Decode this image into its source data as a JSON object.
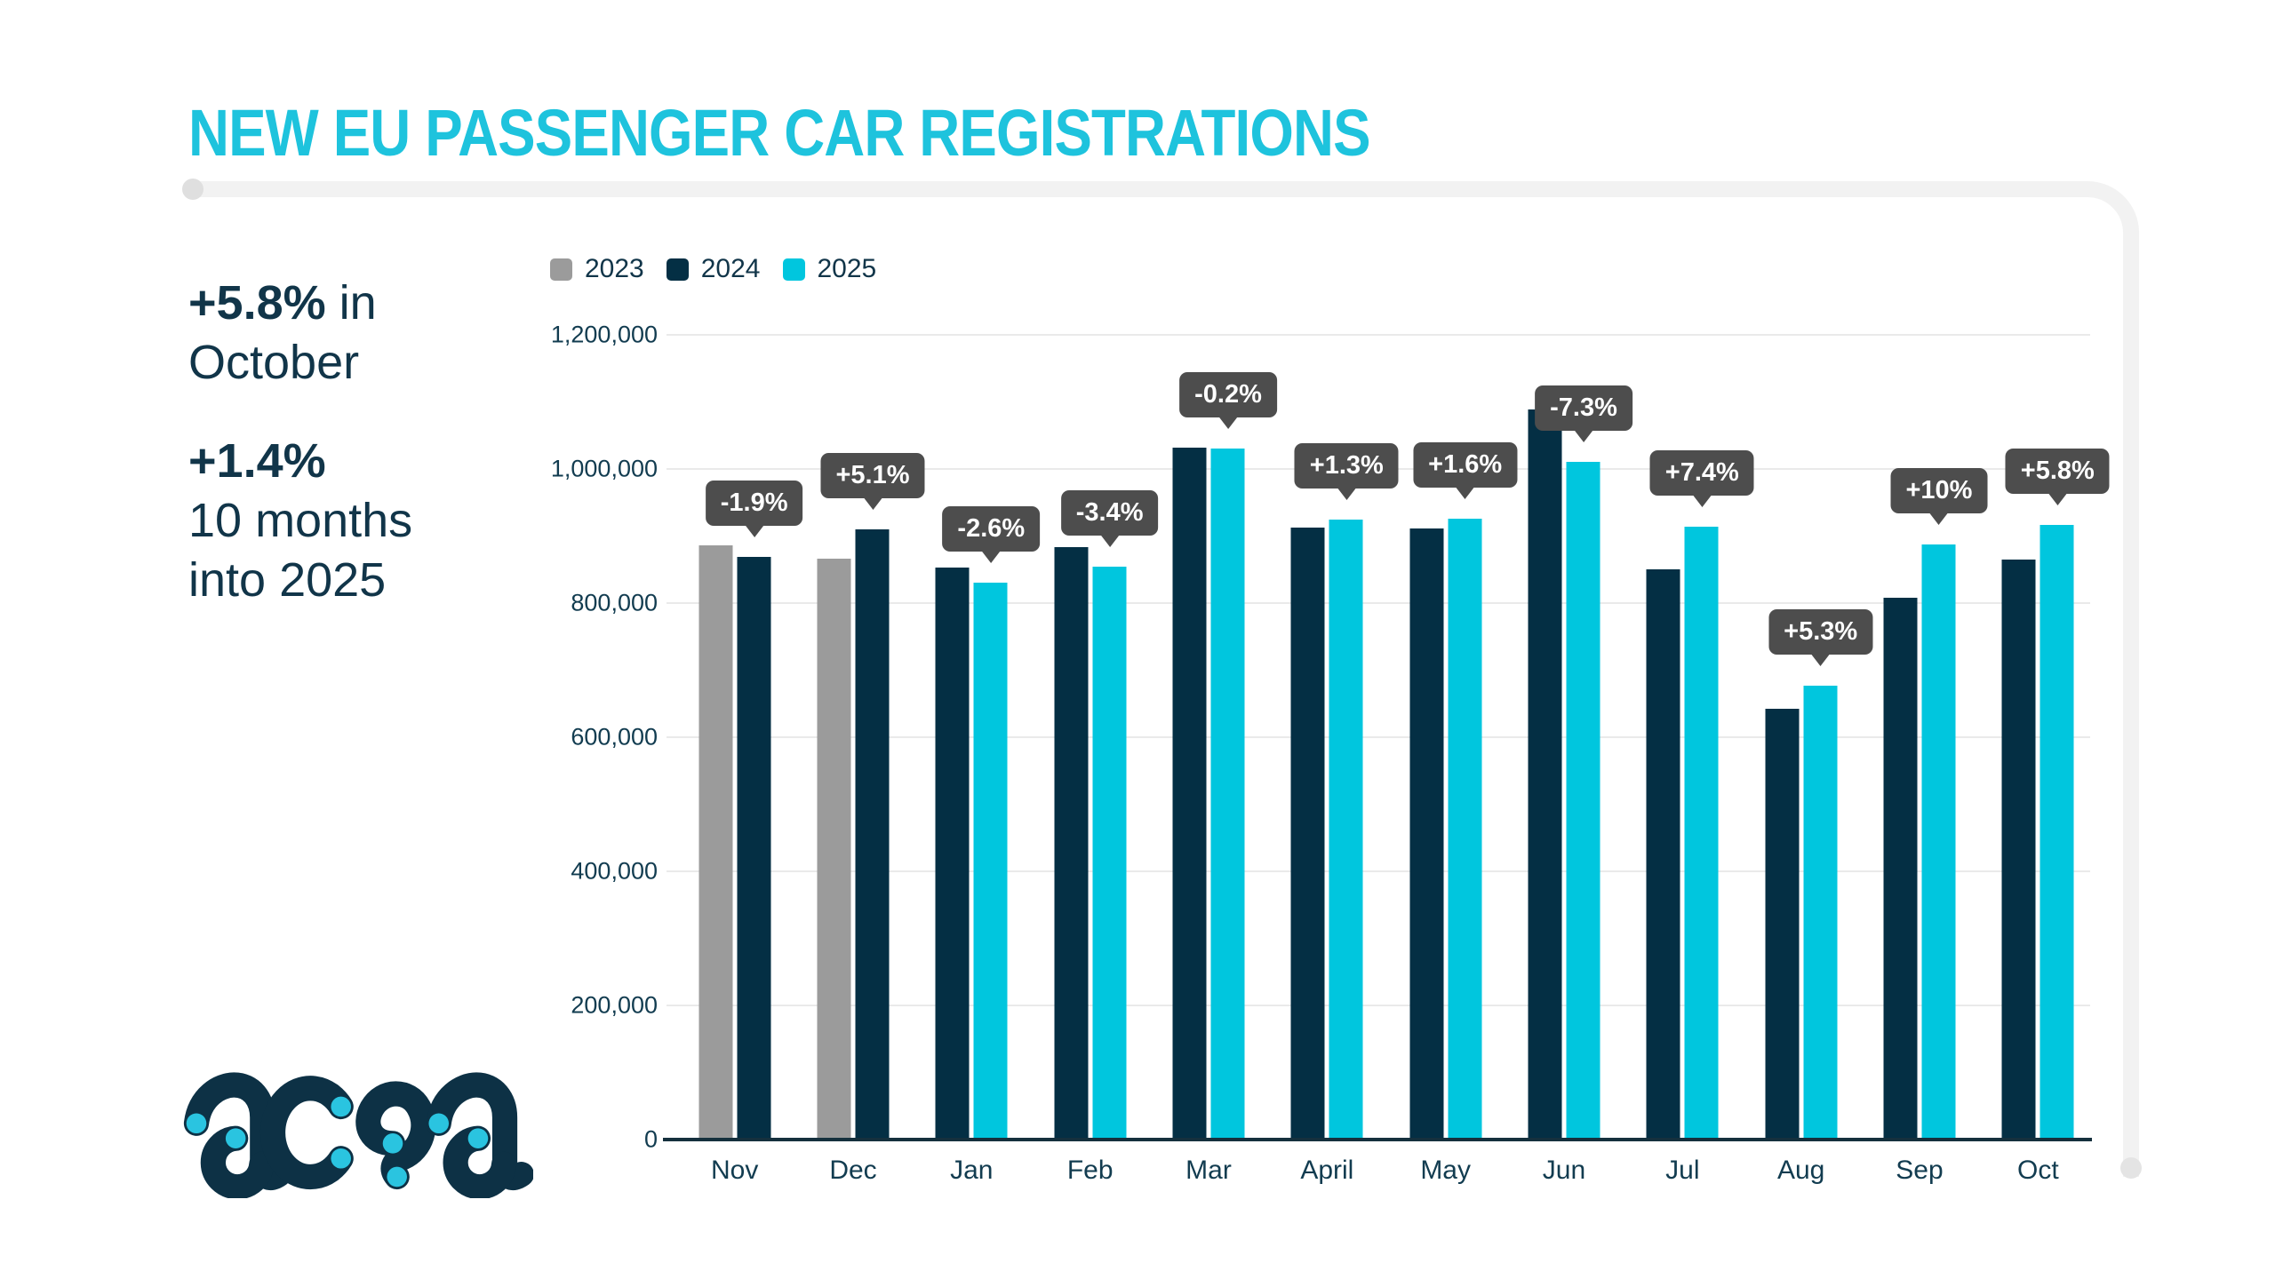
{
  "title": "NEW EU PASSENGER CAR REGISTRATIONS",
  "title_color": "#1ec3dd",
  "stats": {
    "first": {
      "pct": "+5.8%",
      "suffix": " in",
      "period": "October"
    },
    "second": {
      "pct": "+1.4%",
      "line1": "10 months",
      "line2": "into 2025"
    }
  },
  "logo": {
    "text": "acea"
  },
  "colors": {
    "navy_text": "#113549",
    "bar_2023": "#9b9b9b",
    "bar_2024": "#042f44",
    "bar_2025": "#00c6de",
    "callout_bg": "#4d4d4d",
    "gridline": "#eaeaea",
    "axis": "#15303d",
    "frame": "#f2f2f2"
  },
  "legend": [
    {
      "label": "2023",
      "color": "#9b9b9b"
    },
    {
      "label": "2024",
      "color": "#042f44"
    },
    {
      "label": "2025",
      "color": "#00c6de"
    }
  ],
  "chart_data": {
    "type": "bar",
    "title": "NEW EU PASSENGER CAR REGISTRATIONS",
    "xlabel": "",
    "ylabel": "",
    "ylim": [
      0,
      1200000
    ],
    "ytick_step": 200000,
    "ytick_labels": [
      "1,200,000",
      "1,000,000",
      "800,000",
      "600,000",
      "400,000",
      "200,000",
      "0"
    ],
    "grid": true,
    "legend_position": "top-left",
    "categories": [
      "Nov",
      "Dec",
      "Jan",
      "Feb",
      "Mar",
      "April",
      "May",
      "Jun",
      "Jul",
      "Aug",
      "Sep",
      "Oct"
    ],
    "series": [
      {
        "name": "2023",
        "values": [
          886000,
          866000,
          null,
          null,
          null,
          null,
          null,
          null,
          null,
          null,
          null,
          null
        ]
      },
      {
        "name": "2024",
        "values": [
          869000,
          910000,
          853000,
          884000,
          1032000,
          913000,
          911000,
          1089000,
          851000,
          643000,
          808000,
          865000
        ]
      },
      {
        "name": "2025",
        "values": [
          null,
          null,
          831000,
          854000,
          1030000,
          925000,
          926000,
          1010000,
          914000,
          677000,
          888000,
          916000
        ]
      }
    ],
    "annotations": [
      "-1.9%",
      "+5.1%",
      "-2.6%",
      "-3.4%",
      "-0.2%",
      "+1.3%",
      "+1.6%",
      "-7.3%",
      "+7.4%",
      "+5.3%",
      "+10%",
      "+5.8%"
    ]
  }
}
